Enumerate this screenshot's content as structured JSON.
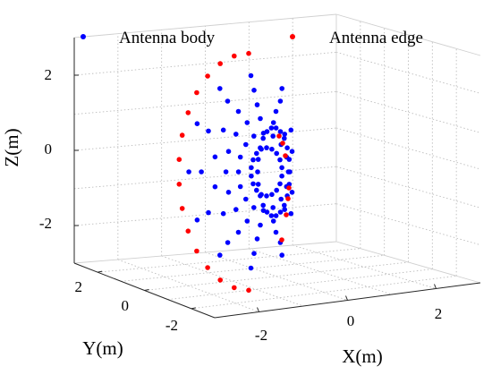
{
  "chart_data": {
    "type": "scatter",
    "projection": "3d",
    "title": "",
    "xlabel": "X(m)",
    "ylabel": "Y(m)",
    "zlabel": "Z(m)",
    "x_ticks": [
      "-2",
      "0",
      "2"
    ],
    "y_ticks": [
      "-2",
      "0",
      "2"
    ],
    "z_ticks": [
      "-2",
      "0",
      "2"
    ],
    "xlim": [
      -3,
      3
    ],
    "ylim": [
      -3,
      3
    ],
    "zlim": [
      -3,
      3
    ],
    "grid": true,
    "legend_position": "top",
    "series": [
      {
        "name": "Antenna body",
        "color": "#0000ff",
        "marker": "circle"
      },
      {
        "name": "Antenna edge",
        "color": "#ff0000",
        "marker": "circle"
      }
    ]
  }
}
